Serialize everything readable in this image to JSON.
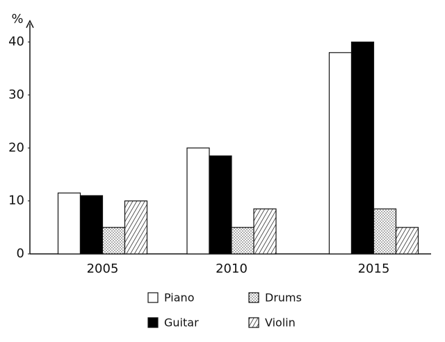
{
  "chart_data": {
    "type": "bar",
    "y_label": "%",
    "categories": [
      "2005",
      "2010",
      "2015"
    ],
    "series": [
      {
        "name": "Piano",
        "color": "#ffffff",
        "pattern": "solid",
        "values": [
          11.5,
          20,
          38
        ]
      },
      {
        "name": "Guitar",
        "color": "#000000",
        "pattern": "solid",
        "values": [
          11,
          18.5,
          40
        ]
      },
      {
        "name": "Drums",
        "color": "#ffffff",
        "pattern": "dots",
        "values": [
          5,
          5,
          8.5
        ]
      },
      {
        "name": "Violin",
        "color": "#ffffff",
        "pattern": "hatch",
        "values": [
          10,
          8.5,
          5
        ]
      }
    ],
    "ylim": [
      0,
      44
    ],
    "yticks": [
      0,
      10,
      20,
      30,
      40
    ],
    "grid": false
  }
}
